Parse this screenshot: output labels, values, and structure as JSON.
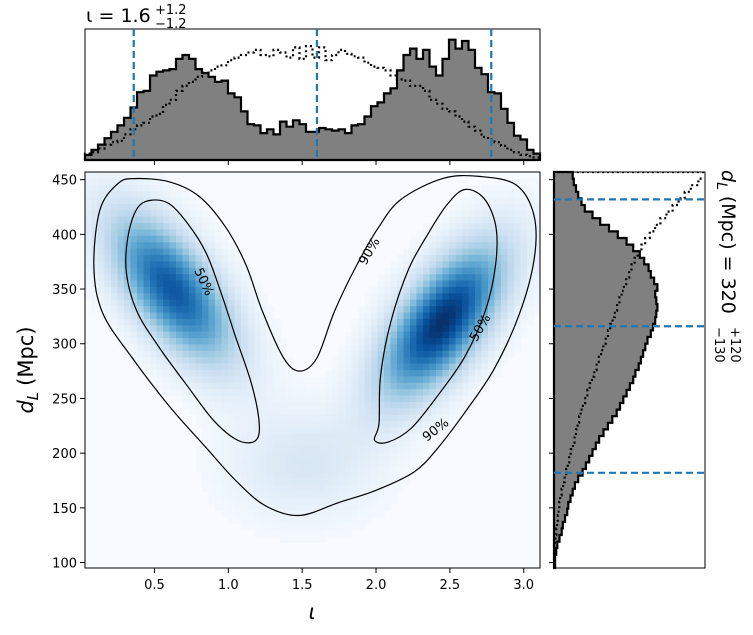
{
  "chart_data": [
    {
      "type": "heatmap",
      "xlabel": "ι",
      "ylabel_main": "d",
      "ylabel_sub": "L",
      "ylabel_unit": "(Mpc)",
      "xlim": [
        0.03,
        3.11
      ],
      "ylim": [
        95,
        457
      ],
      "x_ticks": [
        0.5,
        1.0,
        1.5,
        2.0,
        2.5,
        3.0
      ],
      "x_tick_labels": [
        "0.5",
        "1.0",
        "1.5",
        "2.0",
        "2.5",
        "3.0"
      ],
      "y_ticks": [
        100,
        150,
        200,
        250,
        300,
        350,
        400,
        450
      ],
      "y_tick_labels": [
        "100",
        "150",
        "200",
        "250",
        "300",
        "350",
        "400",
        "450"
      ],
      "colormap": "Blues",
      "density_peaks": [
        {
          "x": 0.62,
          "y": 350,
          "weight": 0.85
        },
        {
          "x": 2.45,
          "y": 320,
          "weight": 1.0
        }
      ],
      "contour_labels": [
        {
          "text": "50%",
          "x": 0.84,
          "y": 357,
          "angle": 65
        },
        {
          "text": "90%",
          "x": 1.95,
          "y": 385,
          "angle": -60
        },
        {
          "text": "50%",
          "x": 2.7,
          "y": 315,
          "angle": -60
        },
        {
          "text": "90%",
          "x": 2.4,
          "y": 222,
          "angle": -38
        }
      ],
      "contour_50_left": [
        [
          0.38,
          423
        ],
        [
          0.47,
          431
        ],
        [
          0.6,
          428
        ],
        [
          0.73,
          409
        ],
        [
          0.85,
          383
        ],
        [
          0.95,
          347
        ],
        [
          1.05,
          306
        ],
        [
          1.16,
          262
        ],
        [
          1.21,
          226
        ],
        [
          1.18,
          211
        ],
        [
          1.06,
          212
        ],
        [
          0.9,
          230
        ],
        [
          0.72,
          262
        ],
        [
          0.53,
          297
        ],
        [
          0.38,
          330
        ],
        [
          0.31,
          365
        ],
        [
          0.32,
          397
        ],
        [
          0.38,
          423
        ]
      ],
      "contour_50_right": [
        [
          2.02,
          227
        ],
        [
          2.03,
          270
        ],
        [
          2.1,
          320
        ],
        [
          2.22,
          368
        ],
        [
          2.35,
          400
        ],
        [
          2.48,
          427
        ],
        [
          2.6,
          441
        ],
        [
          2.73,
          433
        ],
        [
          2.81,
          408
        ],
        [
          2.81,
          373
        ],
        [
          2.74,
          330
        ],
        [
          2.6,
          288
        ],
        [
          2.42,
          253
        ],
        [
          2.24,
          223
        ],
        [
          2.08,
          210
        ],
        [
          1.99,
          212
        ],
        [
          2.02,
          227
        ]
      ],
      "contour_90": [
        [
          0.25,
          446
        ],
        [
          0.36,
          451
        ],
        [
          0.6,
          448
        ],
        [
          0.8,
          435
        ],
        [
          0.98,
          407
        ],
        [
          1.12,
          372
        ],
        [
          1.23,
          330
        ],
        [
          1.37,
          288
        ],
        [
          1.48,
          275
        ],
        [
          1.6,
          287
        ],
        [
          1.72,
          330
        ],
        [
          1.87,
          372
        ],
        [
          2.02,
          407
        ],
        [
          2.17,
          432
        ],
        [
          2.45,
          451
        ],
        [
          2.7,
          453
        ],
        [
          2.95,
          445
        ],
        [
          3.07,
          417
        ],
        [
          3.07,
          377
        ],
        [
          2.97,
          327
        ],
        [
          2.8,
          277
        ],
        [
          2.6,
          237
        ],
        [
          2.42,
          205
        ],
        [
          2.26,
          183
        ],
        [
          2.0,
          166
        ],
        [
          1.75,
          155
        ],
        [
          1.48,
          143
        ],
        [
          1.25,
          152
        ],
        [
          1.05,
          175
        ],
        [
          0.85,
          205
        ],
        [
          0.6,
          243
        ],
        [
          0.35,
          287
        ],
        [
          0.15,
          328
        ],
        [
          0.09,
          370
        ],
        [
          0.13,
          422
        ],
        [
          0.25,
          446
        ]
      ],
      "marginal_x": {
        "quantile_lines": [
          0.36,
          1.6,
          2.78
        ],
        "title_param": "ι",
        "title_median": "1.6",
        "title_plus": "+1.2",
        "title_minus": "−1.2",
        "posterior_steps": [
          0.04,
          0.08,
          0.12,
          0.17,
          0.22,
          0.27,
          0.33,
          0.41,
          0.53,
          0.54,
          0.66,
          0.69,
          0.7,
          0.71,
          0.79,
          0.82,
          0.79,
          0.71,
          0.68,
          0.65,
          0.61,
          0.62,
          0.52,
          0.49,
          0.38,
          0.28,
          0.27,
          0.21,
          0.24,
          0.2,
          0.3,
          0.26,
          0.31,
          0.28,
          0.22,
          0.22,
          0.25,
          0.24,
          0.23,
          0.24,
          0.21,
          0.27,
          0.28,
          0.34,
          0.42,
          0.45,
          0.52,
          0.56,
          0.7,
          0.82,
          0.87,
          0.79,
          0.86,
          0.73,
          0.66,
          0.79,
          0.94,
          0.87,
          0.93,
          0.86,
          0.72,
          0.67,
          0.53,
          0.52,
          0.4,
          0.29,
          0.19,
          0.16,
          0.08,
          0.05
        ],
        "prior_steps": [
          0.05,
          0.06,
          0.09,
          0.12,
          0.14,
          0.15,
          0.2,
          0.24,
          0.27,
          0.29,
          0.34,
          0.36,
          0.43,
          0.47,
          0.54,
          0.58,
          0.61,
          0.65,
          0.68,
          0.7,
          0.73,
          0.74,
          0.78,
          0.8,
          0.82,
          0.84,
          0.86,
          0.82,
          0.81,
          0.86,
          0.84,
          0.8,
          0.88,
          0.79,
          0.89,
          0.8,
          0.88,
          0.78,
          0.82,
          0.86,
          0.83,
          0.81,
          0.8,
          0.76,
          0.73,
          0.72,
          0.7,
          0.66,
          0.63,
          0.62,
          0.58,
          0.58,
          0.54,
          0.47,
          0.44,
          0.4,
          0.38,
          0.34,
          0.3,
          0.26,
          0.23,
          0.18,
          0.16,
          0.14,
          0.11,
          0.08,
          0.06,
          0.04,
          0.03,
          0.02
        ]
      },
      "marginal_y": {
        "quantile_lines": [
          182,
          316,
          432
        ],
        "title_param": "d",
        "title_sub": "L",
        "title_unit": "(Mpc) =",
        "title_median": "320",
        "title_plus": "+120",
        "title_minus": "−130",
        "posterior_steps": [
          0.01,
          0.01,
          0.02,
          0.03,
          0.05,
          0.07,
          0.08,
          0.1,
          0.12,
          0.13,
          0.15,
          0.17,
          0.19,
          0.22,
          0.26,
          0.29,
          0.32,
          0.35,
          0.38,
          0.41,
          0.45,
          0.49,
          0.53,
          0.57,
          0.6,
          0.63,
          0.66,
          0.69,
          0.72,
          0.74,
          0.77,
          0.79,
          0.81,
          0.83,
          0.85,
          0.88,
          0.9,
          0.92,
          0.93,
          0.94,
          0.93,
          0.92,
          0.94,
          0.91,
          0.88,
          0.86,
          0.82,
          0.78,
          0.72,
          0.66,
          0.58,
          0.5,
          0.42,
          0.35,
          0.28,
          0.25,
          0.22,
          0.2,
          0.18,
          0.17
        ],
        "prior_steps": [
          0.0,
          0.0,
          0.01,
          0.01,
          0.02,
          0.03,
          0.04,
          0.05,
          0.06,
          0.07,
          0.08,
          0.1,
          0.12,
          0.14,
          0.16,
          0.18,
          0.2,
          0.22,
          0.25,
          0.27,
          0.29,
          0.31,
          0.33,
          0.35,
          0.38,
          0.41,
          0.44,
          0.47,
          0.5,
          0.53,
          0.56,
          0.59,
          0.62,
          0.65,
          0.68,
          0.71,
          0.74,
          0.77,
          0.8,
          0.83,
          0.86,
          0.89,
          0.92,
          0.95,
          0.99,
          1.02,
          1.06,
          1.1,
          1.15,
          1.2,
          1.26,
          1.33,
          1.4,
          1.48,
          1.56,
          1.64,
          1.72,
          1.8,
          1.9,
          2.0
        ]
      }
    }
  ]
}
